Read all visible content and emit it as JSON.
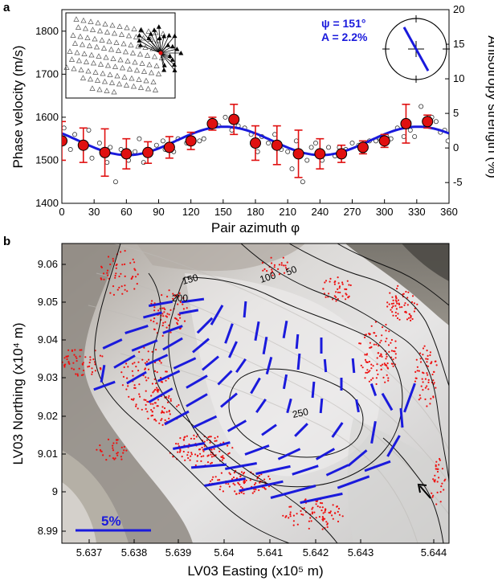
{
  "chart_data": [
    {
      "type": "scatter",
      "panel": "a",
      "xlabel": "Pair azimuth φ",
      "ylabel": "Phase velocity (m/s)",
      "y2label": "Anisotropy strength  (%)",
      "xlim": [
        0,
        360
      ],
      "ylim": [
        1400,
        1850
      ],
      "y2lim": [
        -8,
        20
      ],
      "xticks": [
        "0",
        "10",
        "20",
        "30",
        "40",
        "50",
        "60",
        "70",
        "80",
        "90",
        "100",
        "110",
        "120",
        "130",
        "140",
        "150",
        "160",
        "170",
        "180",
        "190",
        "200",
        "210",
        "220",
        "230",
        "240",
        "250",
        "260",
        "270",
        "280",
        "290",
        "300",
        "310",
        "320",
        "330",
        "340",
        "350",
        "360"
      ],
      "xtick_labels": [
        "0",
        "30",
        "60",
        "90",
        "120",
        "150",
        "180",
        "210",
        "240",
        "270",
        "300",
        "330",
        "360"
      ],
      "yticks": [
        "1400",
        "1500",
        "1600",
        "1700",
        "1800"
      ],
      "y2ticks": [
        "-5",
        "0",
        "5",
        "10",
        "15",
        "20"
      ],
      "annotation_psi": "ψ = 151°",
      "annotation_a": "A = 2.2%",
      "fit_params": {
        "mean": 1545,
        "amp": 33,
        "psi_deg": 151
      },
      "binned_points": [
        {
          "x": 0,
          "y": 1545,
          "err": 45
        },
        {
          "x": 20,
          "y": 1535,
          "err": 40
        },
        {
          "x": 40,
          "y": 1518,
          "err": 55
        },
        {
          "x": 60,
          "y": 1515,
          "err": 35
        },
        {
          "x": 80,
          "y": 1518,
          "err": 25
        },
        {
          "x": 100,
          "y": 1530,
          "err": 25
        },
        {
          "x": 120,
          "y": 1545,
          "err": 20
        },
        {
          "x": 140,
          "y": 1585,
          "err": 15
        },
        {
          "x": 160,
          "y": 1595,
          "err": 35
        },
        {
          "x": 180,
          "y": 1540,
          "err": 40
        },
        {
          "x": 200,
          "y": 1535,
          "err": 45
        },
        {
          "x": 220,
          "y": 1515,
          "err": 55
        },
        {
          "x": 240,
          "y": 1515,
          "err": 35
        },
        {
          "x": 260,
          "y": 1515,
          "err": 20
        },
        {
          "x": 280,
          "y": 1530,
          "err": 15
        },
        {
          "x": 300,
          "y": 1545,
          "err": 15
        },
        {
          "x": 320,
          "y": 1585,
          "err": 45
        },
        {
          "x": 340,
          "y": 1590,
          "err": 15
        }
      ],
      "raw_points": [
        {
          "x": 2,
          "y": 1575
        },
        {
          "x": 8,
          "y": 1525
        },
        {
          "x": 12,
          "y": 1560
        },
        {
          "x": 18,
          "y": 1540
        },
        {
          "x": 25,
          "y": 1570
        },
        {
          "x": 28,
          "y": 1505
        },
        {
          "x": 35,
          "y": 1540
        },
        {
          "x": 42,
          "y": 1495
        },
        {
          "x": 45,
          "y": 1530
        },
        {
          "x": 50,
          "y": 1450
        },
        {
          "x": 55,
          "y": 1525
        },
        {
          "x": 62,
          "y": 1500
        },
        {
          "x": 68,
          "y": 1520
        },
        {
          "x": 72,
          "y": 1550
        },
        {
          "x": 76,
          "y": 1495
        },
        {
          "x": 82,
          "y": 1520
        },
        {
          "x": 88,
          "y": 1535
        },
        {
          "x": 94,
          "y": 1545
        },
        {
          "x": 96,
          "y": 1525
        },
        {
          "x": 104,
          "y": 1520
        },
        {
          "x": 108,
          "y": 1550
        },
        {
          "x": 116,
          "y": 1540
        },
        {
          "x": 122,
          "y": 1550
        },
        {
          "x": 128,
          "y": 1545
        },
        {
          "x": 132,
          "y": 1550
        },
        {
          "x": 138,
          "y": 1575
        },
        {
          "x": 146,
          "y": 1580
        },
        {
          "x": 152,
          "y": 1600
        },
        {
          "x": 158,
          "y": 1570
        },
        {
          "x": 164,
          "y": 1580
        },
        {
          "x": 170,
          "y": 1575
        },
        {
          "x": 176,
          "y": 1560
        },
        {
          "x": 182,
          "y": 1520
        },
        {
          "x": 186,
          "y": 1555
        },
        {
          "x": 192,
          "y": 1540
        },
        {
          "x": 198,
          "y": 1560
        },
        {
          "x": 204,
          "y": 1525
        },
        {
          "x": 210,
          "y": 1520
        },
        {
          "x": 214,
          "y": 1480
        },
        {
          "x": 218,
          "y": 1545
        },
        {
          "x": 224,
          "y": 1450
        },
        {
          "x": 228,
          "y": 1500
        },
        {
          "x": 232,
          "y": 1530
        },
        {
          "x": 236,
          "y": 1540
        },
        {
          "x": 242,
          "y": 1500
        },
        {
          "x": 248,
          "y": 1530
        },
        {
          "x": 254,
          "y": 1510
        },
        {
          "x": 258,
          "y": 1530
        },
        {
          "x": 264,
          "y": 1525
        },
        {
          "x": 270,
          "y": 1540
        },
        {
          "x": 276,
          "y": 1535
        },
        {
          "x": 280,
          "y": 1520
        },
        {
          "x": 286,
          "y": 1545
        },
        {
          "x": 292,
          "y": 1545
        },
        {
          "x": 296,
          "y": 1550
        },
        {
          "x": 302,
          "y": 1555
        },
        {
          "x": 306,
          "y": 1550
        },
        {
          "x": 312,
          "y": 1575
        },
        {
          "x": 318,
          "y": 1555
        },
        {
          "x": 324,
          "y": 1570
        },
        {
          "x": 328,
          "y": 1555
        },
        {
          "x": 334,
          "y": 1625
        },
        {
          "x": 338,
          "y": 1595
        },
        {
          "x": 344,
          "y": 1600
        },
        {
          "x": 348,
          "y": 1590
        },
        {
          "x": 352,
          "y": 1565
        },
        {
          "x": 356,
          "y": 1570
        },
        {
          "x": 359,
          "y": 1545
        }
      ],
      "colors": {
        "fit": "#1a1adc",
        "points": "#e01010",
        "errorbars": "#e01010"
      }
    },
    {
      "type": "map",
      "panel": "b",
      "xlabel": "LV03 Easting (x10⁵ m)",
      "ylabel": "LV03 Northing (x10⁴ m)",
      "xticks": [
        "5.637",
        "5.638",
        "5.639",
        "5.64",
        "5.641",
        "5.642",
        "5.643",
        "5.644"
      ],
      "yticks": [
        "8.99",
        "9",
        "9.01",
        "9.02",
        "9.03",
        "9.04",
        "9.05",
        "9.06"
      ],
      "contour_labels": [
        "150",
        "100",
        "50",
        "200",
        "250"
      ],
      "scale_bar_label": "5%",
      "colors": {
        "bars": "#1a1adc",
        "events": "#ee1111",
        "contours": "#111111"
      }
    }
  ],
  "panel_labels": {
    "a": "a",
    "b": "b"
  }
}
